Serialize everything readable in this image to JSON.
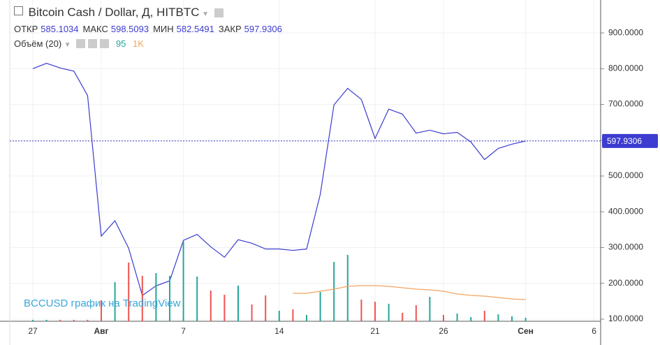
{
  "chart_data": {
    "type": "line",
    "title": "Bitcoin Cash / Dollar, Д, HITBTC",
    "ohlc": [
      {
        "label": "ОТКР",
        "value": 585.1034
      },
      {
        "label": "МАКС",
        "value": 598.5093
      },
      {
        "label": "МИН",
        "value": 582.5491
      },
      {
        "label": "ЗАКР",
        "value": 597.9306
      }
    ],
    "volume_legend": {
      "label": "Объём (20)",
      "value": 95,
      "ma": {
        "value": 1000,
        "label": "1K"
      }
    },
    "watermark": "BCCUSD график на TradingView",
    "categories": [
      "27",
      null,
      null,
      null,
      null,
      "Авг",
      null,
      null,
      null,
      null,
      null,
      "7",
      null,
      null,
      null,
      null,
      null,
      null,
      "14",
      null,
      null,
      null,
      null,
      null,
      null,
      "21",
      null,
      null,
      null,
      null,
      "26",
      null,
      null,
      null,
      null,
      null,
      "Сен",
      null,
      null,
      null,
      null,
      "6"
    ],
    "series": [
      {
        "name": "Bitcoin Cash / Dollar",
        "color": "#3c3cd0",
        "values": [
          800,
          815,
          802,
          793,
          725,
          332,
          375,
          298,
          166,
          193,
          207,
          320,
          337,
          302,
          273,
          322,
          312,
          296,
          296,
          292,
          296,
          449,
          699,
          745,
          714,
          605,
          687,
          673,
          620,
          628,
          618,
          622,
          595,
          546,
          577,
          589,
          597.9306,
          null,
          null,
          null,
          null,
          null
        ]
      },
      {
        "name": "Объём",
        "axis": "volume",
        "colors": [
          "#26a69a",
          "#26a69a",
          "#ef5350",
          "#ef5350",
          "#ef5350",
          "#ef5350",
          "#26a69a",
          "#ef5350",
          "#ef5350",
          "#26a69a",
          "#26a69a",
          "#26a69a",
          "#26a69a",
          "#ef5350",
          "#ef5350",
          "#26a69a",
          "#ef5350",
          "#ef5350",
          "#26a69a",
          "#ef5350",
          "#26a69a",
          "#26a69a",
          "#26a69a",
          "#26a69a",
          "#ef5350",
          "#ef5350",
          "#26a69a",
          "#ef5350",
          "#ef5350",
          "#26a69a",
          "#ef5350",
          "#26a69a",
          "#26a69a",
          "#ef5350",
          "#26a69a",
          "#26a69a",
          "#26a69a",
          null,
          null,
          null,
          null,
          null
        ],
        "values": [
          2,
          2,
          2,
          2,
          2,
          30,
          56,
          84,
          65,
          69,
          65,
          114,
          64,
          44,
          38,
          51,
          24,
          37,
          15,
          17,
          9,
          42,
          85,
          95,
          31,
          28,
          25,
          12,
          23,
          35,
          9,
          11,
          6,
          15,
          10,
          7,
          5,
          null,
          null,
          null,
          null,
          null
        ]
      },
      {
        "name": "MA",
        "axis": "volume",
        "color": "#f4a460",
        "values": [
          null,
          null,
          null,
          null,
          null,
          null,
          null,
          null,
          null,
          null,
          null,
          null,
          null,
          null,
          null,
          null,
          null,
          null,
          null,
          40,
          40,
          43,
          46,
          50,
          51,
          51,
          50,
          48,
          46,
          45,
          43,
          39,
          37,
          36,
          34,
          32,
          31,
          null,
          null,
          null,
          null,
          null
        ]
      }
    ],
    "ylim": [
      94,
      992
    ],
    "volume_lim": [
      0,
      460
    ],
    "yticks": [
      {
        "value": 100,
        "label": "100.0000"
      },
      {
        "value": 200,
        "label": "200.0000"
      },
      {
        "value": 300,
        "label": "300.0000"
      },
      {
        "value": 400,
        "label": "400.0000"
      },
      {
        "value": 500,
        "label": "500.0000"
      },
      {
        "value": 600,
        "label": "600.0000"
      },
      {
        "value": 700,
        "label": "700.0000"
      },
      {
        "value": 800,
        "label": "800.0000"
      },
      {
        "value": 900,
        "label": "900.0000"
      }
    ],
    "grid": true
  }
}
